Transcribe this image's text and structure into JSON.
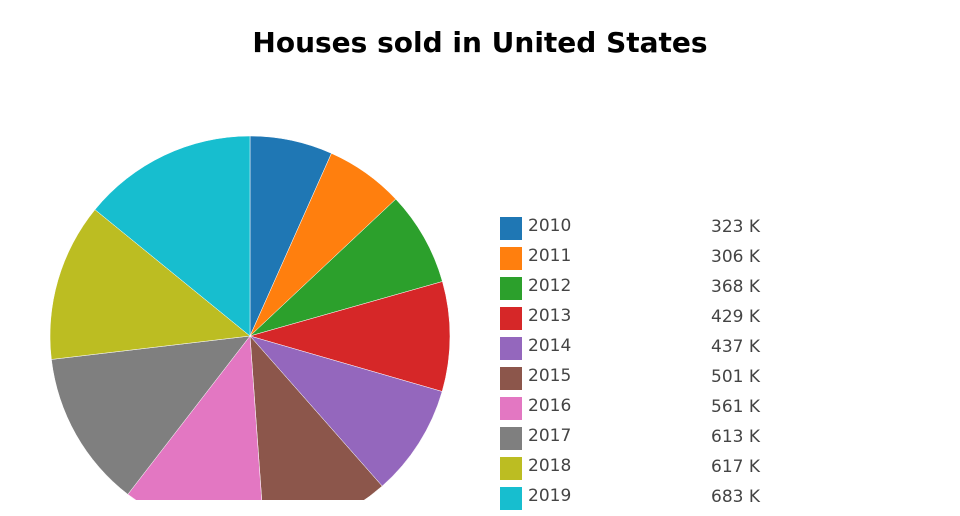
{
  "chart_data": {
    "type": "pie",
    "title": "Houses sold in United States",
    "categories": [
      "2010",
      "2011",
      "2012",
      "2013",
      "2014",
      "2015",
      "2016",
      "2017",
      "2018",
      "2019"
    ],
    "values": [
      323,
      306,
      368,
      429,
      437,
      501,
      561,
      613,
      617,
      683
    ],
    "value_labels": [
      "323 K",
      "306 K",
      "368 K",
      "429 K",
      "437 K",
      "501 K",
      "561 K",
      "613 K",
      "617 K",
      "683 K"
    ],
    "colors": [
      "#1f77b4",
      "#ff7f0e",
      "#2ca02c",
      "#d62728",
      "#9467bd",
      "#8c564b",
      "#e377c2",
      "#7f7f7f",
      "#bcbd22",
      "#17becf"
    ],
    "direction": "clockwise",
    "start": "top",
    "legend_placement": "right"
  }
}
